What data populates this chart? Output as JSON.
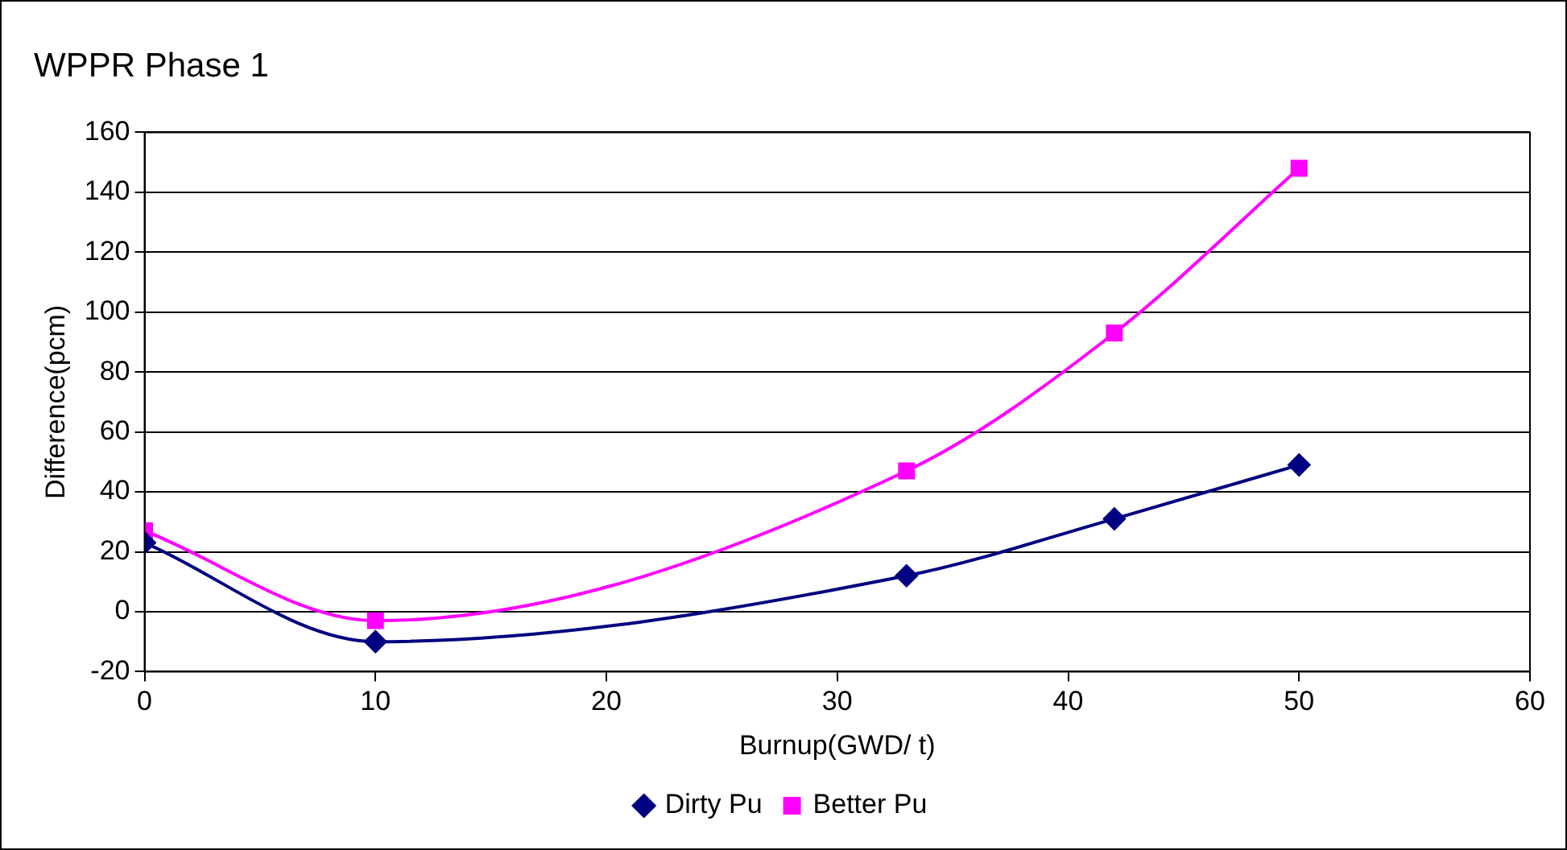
{
  "chart_data": {
    "type": "line",
    "title": "WPPR Phase 1",
    "xlabel": "Burnup(GWD/ t)",
    "ylabel": "Difference(pcm)",
    "x": [
      0,
      10,
      33,
      42,
      50
    ],
    "series": [
      {
        "name": "Dirty Pu",
        "color": "#000080",
        "marker": "diamond",
        "values": [
          23,
          -10,
          12,
          31,
          49
        ]
      },
      {
        "name": "Better Pu",
        "color": "#ff00ff",
        "marker": "square",
        "values": [
          27,
          -3,
          47,
          93,
          148
        ]
      }
    ],
    "xlim": [
      0,
      60
    ],
    "xticks": [
      0,
      10,
      20,
      30,
      40,
      50,
      60
    ],
    "ylim": [
      -20,
      160
    ],
    "yticks": [
      -20,
      0,
      20,
      40,
      60,
      80,
      100,
      120,
      140,
      160
    ],
    "grid": "y",
    "legend": "bottom",
    "line_style": "solid"
  }
}
